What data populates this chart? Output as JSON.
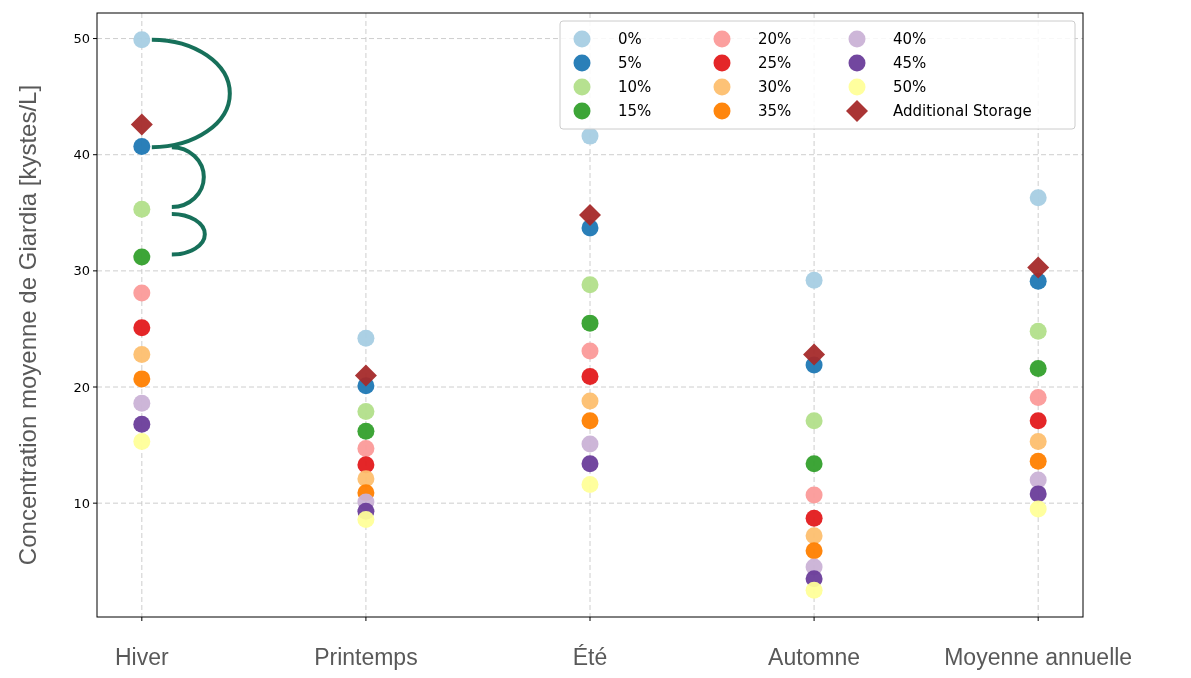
{
  "chart_data": {
    "type": "scatter",
    "ylabel": "Concentration moyenne de Giardia [kystes/L]",
    "categories": [
      "Hiver",
      "Printemps",
      "Été",
      "Automne",
      "Moyenne annuelle"
    ],
    "ylim": [
      0.2,
      52.2
    ],
    "yticks": [
      10,
      20,
      30,
      40,
      50
    ],
    "grid": true,
    "legend": "top right",
    "marker": "circle",
    "series": [
      {
        "name": "0%",
        "color": "#a6cee3",
        "values": [
          49.9,
          24.2,
          41.6,
          29.2,
          36.3
        ]
      },
      {
        "name": "5%",
        "color": "#1f78b4",
        "values": [
          40.7,
          20.1,
          33.7,
          21.9,
          29.1
        ]
      },
      {
        "name": "10%",
        "color": "#b2df8a",
        "values": [
          35.3,
          17.9,
          28.8,
          17.1,
          24.8
        ]
      },
      {
        "name": "15%",
        "color": "#33a02c",
        "values": [
          31.2,
          16.2,
          25.5,
          13.4,
          21.6
        ]
      },
      {
        "name": "20%",
        "color": "#fb9a99",
        "values": [
          28.1,
          14.7,
          23.1,
          10.7,
          19.1
        ]
      },
      {
        "name": "25%",
        "color": "#e31a1c",
        "values": [
          25.1,
          13.3,
          20.9,
          8.7,
          17.1
        ]
      },
      {
        "name": "30%",
        "color": "#fdbf6f",
        "values": [
          22.8,
          12.1,
          18.8,
          7.2,
          15.3
        ]
      },
      {
        "name": "35%",
        "color": "#ff7f00",
        "values": [
          20.7,
          10.9,
          17.1,
          5.9,
          13.6
        ]
      },
      {
        "name": "40%",
        "color": "#cab2d6",
        "values": [
          18.6,
          10.1,
          15.1,
          4.5,
          12.0
        ]
      },
      {
        "name": "45%",
        "color": "#6a3d9a",
        "values": [
          16.8,
          9.3,
          13.4,
          3.5,
          10.8
        ]
      },
      {
        "name": "50%",
        "color": "#ffff99",
        "values": [
          15.3,
          8.6,
          11.6,
          2.5,
          9.5
        ]
      },
      {
        "name": "Additional Storage",
        "color": "#a52a2a",
        "marker": "diamond",
        "values": [
          42.6,
          21.0,
          34.8,
          22.8,
          30.3
        ]
      }
    ]
  }
}
